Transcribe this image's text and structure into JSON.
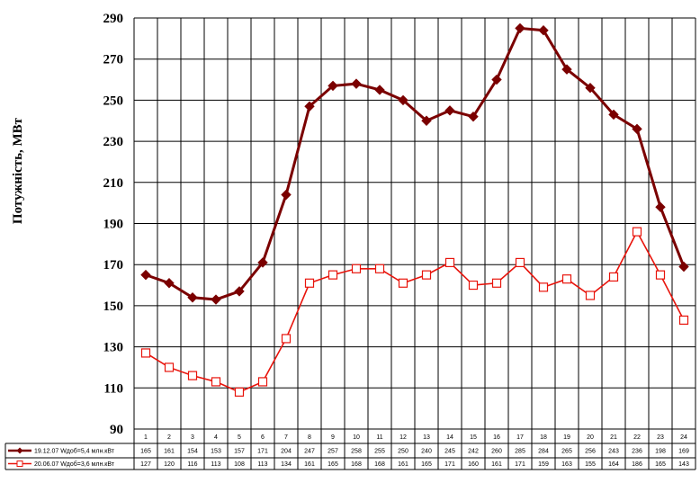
{
  "chart_data": {
    "type": "line",
    "ylabel": "Потужність, МВт",
    "xlabel": "",
    "ylim": [
      90,
      290
    ],
    "yticks": [
      90,
      110,
      130,
      150,
      170,
      190,
      210,
      230,
      250,
      270,
      290
    ],
    "categories": [
      "1",
      "2",
      "3",
      "4",
      "5",
      "6",
      "7",
      "8",
      "9",
      "10",
      "11",
      "12",
      "13",
      "14",
      "15",
      "16",
      "17",
      "18",
      "19",
      "20",
      "21",
      "22",
      "23",
      "24"
    ],
    "grid": true,
    "legend": "bottom data table",
    "series": [
      {
        "name": "19.12.07 Wдоб=5,4 млн.кВт",
        "color": "#7b0000",
        "marker": "filled-diamond",
        "values": [
          165,
          161,
          154,
          153,
          157,
          171,
          204,
          247,
          257,
          258,
          255,
          250,
          240,
          245,
          242,
          260,
          285,
          284,
          265,
          256,
          243,
          236,
          198,
          169
        ]
      },
      {
        "name": "20.06.07 Wдоб=3,6 млн.кВт",
        "color": "#e8140c",
        "marker": "open-square",
        "values": [
          127,
          120,
          116,
          113,
          108,
          113,
          134,
          161,
          165,
          168,
          168,
          161,
          165,
          171,
          160,
          161,
          171,
          159,
          163,
          155,
          164,
          186,
          165,
          143
        ]
      }
    ]
  }
}
